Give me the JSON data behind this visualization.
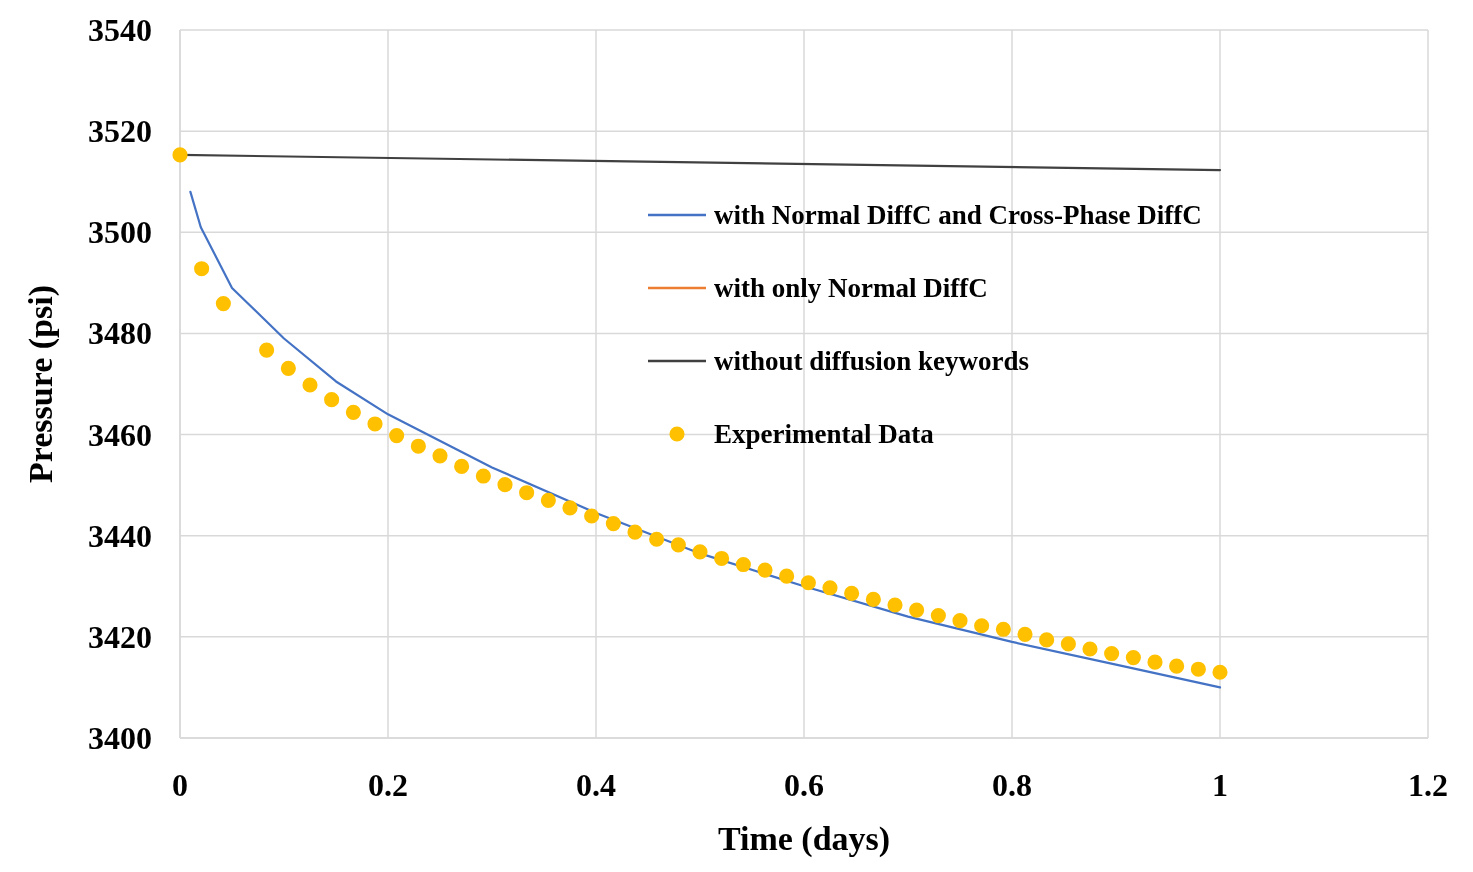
{
  "chart_data": {
    "type": "line",
    "xlabel": "Time (days)",
    "ylabel": "Pressure (psi)",
    "xlim": [
      0,
      1.2
    ],
    "xticks": [
      0,
      0.2,
      0.4,
      0.6,
      0.8,
      1,
      1.2
    ],
    "ylim": [
      3400,
      3540
    ],
    "yticks": [
      3400,
      3420,
      3440,
      3460,
      3480,
      3500,
      3520,
      3540
    ],
    "grid": true,
    "legend": "top right",
    "marker": "none",
    "line_style": "solid",
    "series": [
      {
        "name": "with Normal DiffC and Cross-Phase DiffC",
        "color": "#4472c4",
        "x": [
          0.01,
          0.02,
          0.05,
          0.1,
          0.15,
          0.2,
          0.3,
          0.4,
          0.5,
          0.6,
          0.7,
          0.8,
          0.9,
          1.0
        ],
        "values": [
          3508,
          3501,
          3489,
          3479,
          3470.5,
          3464,
          3453.5,
          3444.5,
          3436.5,
          3430,
          3424,
          3419,
          3414.5,
          3410
        ]
      },
      {
        "name": "with only Normal DiffC",
        "color": "#ed7d31"
      },
      {
        "name": "without diffusion keywords",
        "color": "#404040",
        "x": [
          0,
          1
        ],
        "values": [
          3515.3,
          3512.3
        ]
      },
      {
        "name": "Experimental Data",
        "type": "scatter",
        "marker": "circle",
        "color": "#ffc000",
        "x": [
          0,
          0.0208,
          0.0417,
          0.0833,
          0.1042,
          0.125,
          0.1458,
          0.1667,
          0.1875,
          0.2083,
          0.2292,
          0.25,
          0.2708,
          0.2917,
          0.3125,
          0.3333,
          0.3542,
          0.375,
          0.3958,
          0.4167,
          0.4375,
          0.4583,
          0.4792,
          0.5,
          0.5208,
          0.5417,
          0.5625,
          0.5833,
          0.6042,
          0.625,
          0.6458,
          0.6667,
          0.6875,
          0.7083,
          0.7292,
          0.75,
          0.7708,
          0.7917,
          0.8125,
          0.8333,
          0.8542,
          0.875,
          0.8958,
          0.9167,
          0.9375,
          0.9583,
          0.9792,
          1.0
        ],
        "values": [
          3515.3,
          3492.8,
          3485.9,
          3476.7,
          3473.1,
          3469.8,
          3466.9,
          3464.4,
          3462.1,
          3459.8,
          3457.7,
          3455.8,
          3453.7,
          3451.8,
          3450.1,
          3448.5,
          3447.0,
          3445.5,
          3443.9,
          3442.4,
          3440.7,
          3439.3,
          3438.2,
          3436.8,
          3435.5,
          3434.3,
          3433.2,
          3432.0,
          3430.7,
          3429.7,
          3428.6,
          3427.4,
          3426.3,
          3425.3,
          3424.2,
          3423.2,
          3422.2,
          3421.5,
          3420.5,
          3419.4,
          3418.6,
          3417.6,
          3416.7,
          3415.9,
          3415.0,
          3414.2,
          3413.6,
          3413.0
        ]
      }
    ]
  }
}
